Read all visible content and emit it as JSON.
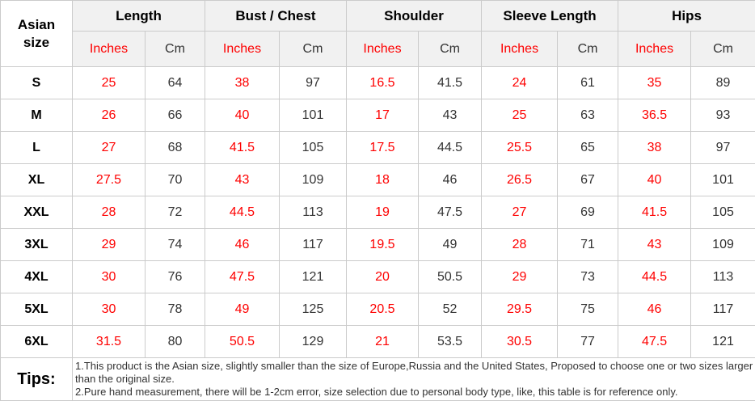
{
  "table": {
    "corner_header": "Asian size",
    "column_groups": [
      {
        "label": "Length"
      },
      {
        "label": "Bust / Chest"
      },
      {
        "label": "Shoulder"
      },
      {
        "label": "Sleeve Length"
      },
      {
        "label": "Hips"
      }
    ],
    "unit_headers": {
      "inches": "Inches",
      "cm": "Cm"
    },
    "rows": [
      {
        "size": "S",
        "values": [
          "25",
          "64",
          "38",
          "97",
          "16.5",
          "41.5",
          "24",
          "61",
          "35",
          "89"
        ]
      },
      {
        "size": "M",
        "values": [
          "26",
          "66",
          "40",
          "101",
          "17",
          "43",
          "25",
          "63",
          "36.5",
          "93"
        ]
      },
      {
        "size": "L",
        "values": [
          "27",
          "68",
          "41.5",
          "105",
          "17.5",
          "44.5",
          "25.5",
          "65",
          "38",
          "97"
        ]
      },
      {
        "size": "XL",
        "values": [
          "27.5",
          "70",
          "43",
          "109",
          "18",
          "46",
          "26.5",
          "67",
          "40",
          "101"
        ]
      },
      {
        "size": "XXL",
        "values": [
          "28",
          "72",
          "44.5",
          "113",
          "19",
          "47.5",
          "27",
          "69",
          "41.5",
          "105"
        ]
      },
      {
        "size": "3XL",
        "values": [
          "29",
          "74",
          "46",
          "117",
          "19.5",
          "49",
          "28",
          "71",
          "43",
          "109"
        ]
      },
      {
        "size": "4XL",
        "values": [
          "30",
          "76",
          "47.5",
          "121",
          "20",
          "50.5",
          "29",
          "73",
          "44.5",
          "113"
        ]
      },
      {
        "size": "5XL",
        "values": [
          "30",
          "78",
          "49",
          "125",
          "20.5",
          "52",
          "29.5",
          "75",
          "46",
          "117"
        ]
      },
      {
        "size": "6XL",
        "values": [
          "31.5",
          "80",
          "50.5",
          "129",
          "21",
          "53.5",
          "30.5",
          "77",
          "47.5",
          "121"
        ]
      }
    ],
    "tips": {
      "label": "Tips:",
      "lines": [
        "1.This product is the Asian size, slightly smaller than the size of Europe,Russia and the United States, Proposed to choose one or two sizes larger than the original size.",
        "2.Pure hand measurement, there will be 1-2cm error, size selection due to personal body type, like, this table is for reference only."
      ]
    },
    "colors": {
      "inches_text": "#fe0000",
      "values_text": "#333333",
      "header_background": "#f1f1f1",
      "grid_border": "#cbcbcb"
    }
  }
}
